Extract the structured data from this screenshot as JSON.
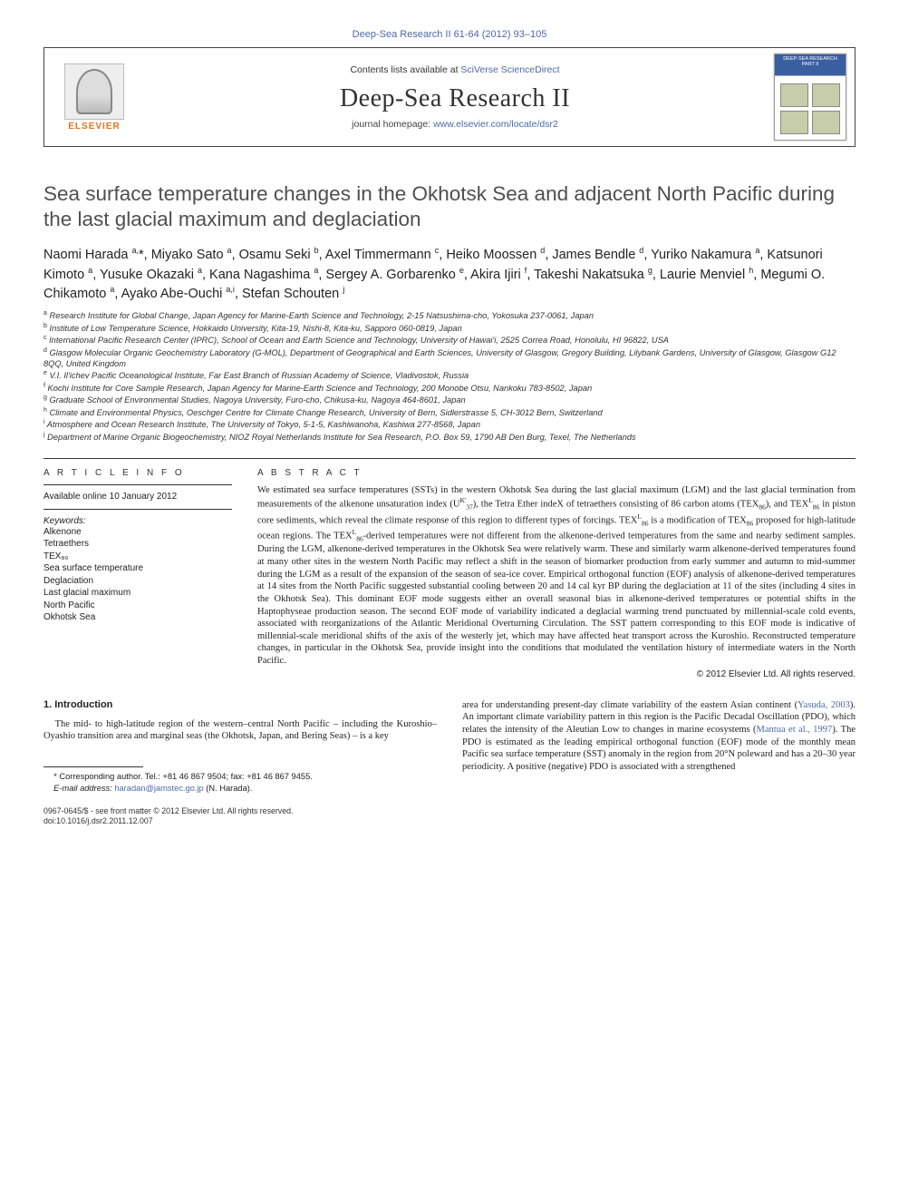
{
  "header": {
    "top_link": "Deep-Sea Research II 61-64 (2012) 93–105",
    "contents_prefix": "Contents lists available at ",
    "contents_link_text": "SciVerse ScienceDirect",
    "journal_name": "Deep-Sea Research II",
    "homepage_prefix": "journal homepage: ",
    "homepage_link_text": "www.elsevier.com/locate/dsr2",
    "elsevier": "ELSEVIER",
    "cover_label": "DEEP-SEA RESEARCH PART II"
  },
  "title": "Sea surface temperature changes in the Okhotsk Sea and adjacent North Pacific during the last glacial maximum and deglaciation",
  "authors_html": "Naomi Harada <span class='sup'>a,</span>*, Miyako Sato <span class='sup'>a</span>, Osamu Seki <span class='sup'>b</span>, Axel Timmermann <span class='sup'>c</span>, Heiko Moossen <span class='sup'>d</span>, James Bendle <span class='sup'>d</span>, Yuriko Nakamura <span class='sup'>a</span>, Katsunori Kimoto <span class='sup'>a</span>, Yusuke Okazaki <span class='sup'>a</span>, Kana Nagashima <span class='sup'>a</span>, Sergey A. Gorbarenko <span class='sup'>e</span>, Akira Ijiri <span class='sup'>f</span>, Takeshi Nakatsuka <span class='sup'>g</span>, Laurie Menviel <span class='sup'>h</span>, Megumi O. Chikamoto <span class='sup'>a</span>, Ayako Abe-Ouchi <span class='sup'>a,i</span>, Stefan Schouten <span class='sup'>j</span>",
  "affiliations": [
    {
      "key": "a",
      "text": "Research Institute for Global Change, Japan Agency for Marine-Earth Science and Technology, 2-15 Natsushima-cho, Yokosuka 237-0061, Japan"
    },
    {
      "key": "b",
      "text": "Institute of Low Temperature Science, Hokkaido University, Kita-19, Nishi-8, Kita-ku, Sapporo 060-0819, Japan"
    },
    {
      "key": "c",
      "text": "International Pacific Research Center (IPRC), School of Ocean and Earth Science and Technology, University of Hawai'i, 2525 Correa Road, Honolulu, HI 96822, USA"
    },
    {
      "key": "d",
      "text": "Glasgow Molecular Organic Geochemistry Laboratory (G-MOL), Department of Geographical and Earth Sciences, University of Glasgow, Gregory Building, Lilybank Gardens, University of Glasgow, Glasgow G12 8QQ, United Kingdom"
    },
    {
      "key": "e",
      "text": "V.I. Il'ichev Pacific Oceanological Institute, Far East Branch of Russian Academy of Science, Vladivostok, Russia"
    },
    {
      "key": "f",
      "text": "Kochi Institute for Core Sample Research, Japan Agency for Marine-Earth Science and Technology, 200 Monobe Otsu, Nankoku 783-8502, Japan"
    },
    {
      "key": "g",
      "text": "Graduate School of Environmental Studies, Nagoya University, Furo-cho, Chikusa-ku, Nagoya 464-8601, Japan"
    },
    {
      "key": "h",
      "text": "Climate and Environmental Physics, Oeschger Centre for Climate Change Research, University of Bern, Sidlerstrasse 5, CH-3012 Bern, Switzerland"
    },
    {
      "key": "i",
      "text": "Atmosphere and Ocean Research Institute, The University of Tokyo, 5-1-5, Kashiwanoha, Kashiwa 277-8568, Japan"
    },
    {
      "key": "j",
      "text": "Department of Marine Organic Biogeochemistry, NIOZ Royal Netherlands Institute for Sea Research, P.O. Box 59, 1790 AB Den Burg, Texel, The Netherlands"
    }
  ],
  "article_info": {
    "heading": "A R T I C L E  I N F O",
    "online": "Available online 10 January 2012",
    "kw_label": "Keywords:",
    "keywords": [
      "Alkenone",
      "Tetraethers",
      "TEX₈₆",
      "Sea surface temperature",
      "Deglaciation",
      "Last glacial maximum",
      "North Pacific",
      "Okhotsk Sea"
    ]
  },
  "abstract": {
    "heading": "A B S T R A C T",
    "text_html": "We estimated sea surface temperatures (SSTs) in the western Okhotsk Sea during the last glacial maximum (LGM) and the last glacial termination from measurements of the alkenone unsaturation index (U<span class='sup'>K'</span><span class='sub'>37</span>), the Tetra Ether indeX of tetraethers consisting of 86 carbon atoms (TEX<span class='sub'>86</span>), and TEX<span class='sup'>L</span><span class='sub'>86</span> in piston core sediments, which reveal the climate response of this region to different types of forcings. TEX<span class='sup'>L</span><span class='sub'>86</span> is a modification of TEX<span class='sub'>86</span> proposed for high-latitude ocean regions. The TEX<span class='sup'>L</span><span class='sub'>86</span>-derived temperatures were not different from the alkenone-derived temperatures from the same and nearby sediment samples. During the LGM, alkenone-derived temperatures in the Okhotsk Sea were relatively warm. These and similarly warm alkenone-derived temperatures found at many other sites in the western North Pacific may reflect a shift in the season of biomarker production from early summer and autumn to mid-summer during the LGM as a result of the expansion of the season of sea-ice cover. Empirical orthogonal function (EOF) analysis of alkenone-derived temperatures at 14 sites from the North Pacific suggested substantial cooling between 20 and 14 cal kyr BP during the deglaciation at 11 of the sites (including 4 sites in the Okhotsk Sea). This dominant EOF mode suggests either an overall seasonal bias in alkenone-derived temperatures or potential shifts in the Haptophyseae production season. The second EOF mode of variability indicated a deglacial warming trend punctuated by millennial-scale cold events, associated with reorganizations of the Atlantic Meridional Overturning Circulation. The SST pattern corresponding to this EOF mode is indicative of millennial-scale meridional shifts of the axis of the westerly jet, which may have affected heat transport across the Kuroshio. Reconstructed temperature changes, in particular in the Okhotsk Sea, provide insight into the conditions that modulated the ventilation history of intermediate waters in the North Pacific.",
    "copyright": "© 2012 Elsevier Ltd. All rights reserved."
  },
  "body": {
    "section_heading": "1.  Introduction",
    "left_para_html": "The mid- to high-latitude region of the western–central North Pacific – including the Kuroshio–Oyashio transition area and marginal seas (the Okhotsk, Japan, and Bering Seas) – is a key",
    "right_para_html": "area for understanding present-day climate variability of the eastern Asian continent (<a>Yasuda, 2003</a>). An important climate variability pattern in this region is the Pacific Decadal Oscillation (PDO), which relates the intensity of the Aleutian Low to changes in marine ecosystems (<a>Mantua et al., 1997</a>). The PDO is estimated as the leading empirical orthogonal function (EOF) mode of the monthly mean Pacific sea surface temperature (SST) anomaly in the region from 20°N poleward and has a 20–30 year periodicity. A positive (negative) PDO is associated with a strengthened"
  },
  "corresponding": {
    "line1": "* Corresponding author. Tel.: +81 46 867 9504; fax: +81 46 867 9455.",
    "line2_label": "E-mail address:",
    "line2_email": "haradan@jamstec.go.jp",
    "line2_name": "(N. Harada)."
  },
  "footer": {
    "line1": "0967-0645/$ - see front matter © 2012 Elsevier Ltd. All rights reserved.",
    "line2": "doi:10.1016/j.dsr2.2011.12.007"
  },
  "colors": {
    "link_color": "#4a6aa8",
    "elsevier_orange": "#e9711c",
    "title_gray": "#4f4f4f",
    "rule": "#333333"
  },
  "typography": {
    "title_fontsize_pt": 17,
    "authors_fontsize_pt": 11,
    "affil_fontsize_pt": 7,
    "abstract_fontsize_pt": 8,
    "journal_name_fontsize_pt": 21
  }
}
